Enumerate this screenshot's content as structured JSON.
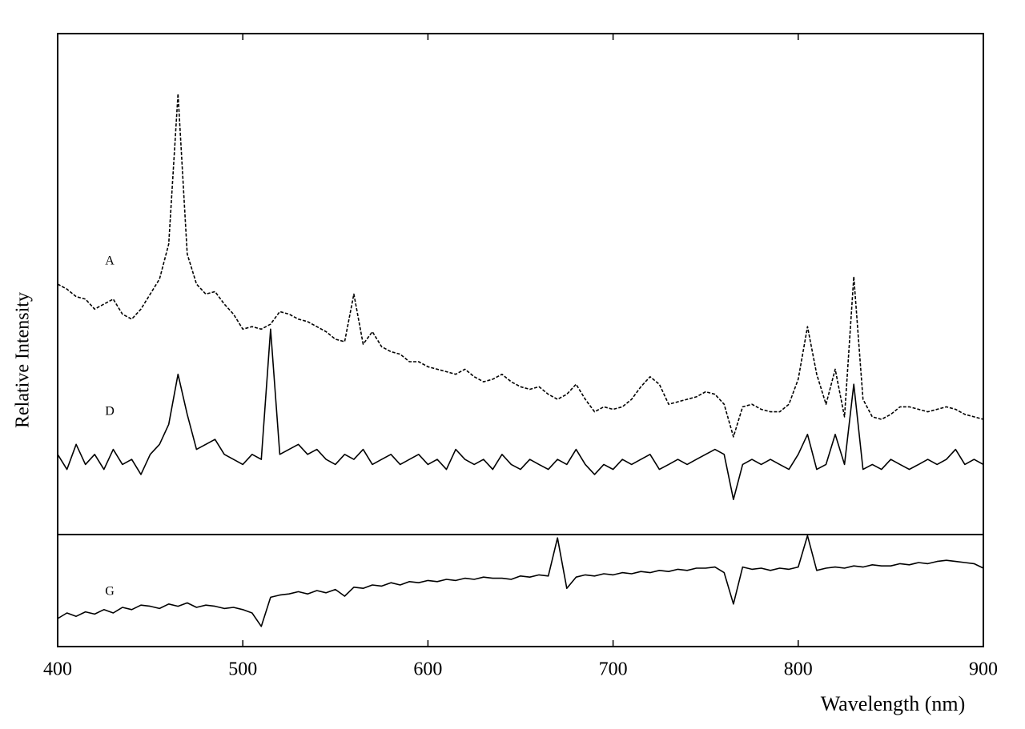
{
  "chart_data": [
    {
      "type": "line",
      "y_label": "Relative Intensity",
      "x": [
        400,
        405,
        410,
        415,
        420,
        425,
        430,
        435,
        440,
        445,
        450,
        455,
        460,
        465,
        470,
        475,
        480,
        485,
        490,
        495,
        500,
        505,
        510,
        515,
        520,
        525,
        530,
        535,
        540,
        545,
        550,
        555,
        560,
        565,
        570,
        575,
        580,
        585,
        590,
        595,
        600,
        605,
        610,
        615,
        620,
        625,
        630,
        635,
        640,
        645,
        650,
        655,
        660,
        665,
        670,
        675,
        680,
        685,
        690,
        695,
        700,
        705,
        710,
        715,
        720,
        725,
        730,
        735,
        740,
        745,
        750,
        755,
        760,
        765,
        770,
        775,
        780,
        785,
        790,
        795,
        800,
        805,
        810,
        815,
        820,
        825,
        830,
        835,
        840,
        845,
        850,
        855,
        860,
        865,
        870,
        875,
        880,
        885,
        890,
        895,
        900
      ],
      "xlim": [
        400,
        900
      ],
      "ylim": [
        0,
        100
      ],
      "series": [
        {
          "name": "A",
          "color": "#000000",
          "line_style": "dashed",
          "values": [
            50,
            49,
            47.5,
            47,
            45,
            46,
            47,
            44,
            43,
            45,
            48,
            51,
            58,
            88,
            56,
            50,
            48,
            48.5,
            46,
            44,
            41,
            41.5,
            41,
            42,
            44.5,
            44,
            43,
            42.5,
            41.5,
            40.5,
            39,
            38.5,
            48,
            38,
            40.5,
            37.5,
            36.5,
            36,
            34.5,
            34.5,
            33.5,
            33,
            32.5,
            32,
            33,
            31.5,
            30.5,
            31,
            32,
            30.5,
            29.5,
            29,
            29.5,
            28,
            27,
            28,
            30,
            27,
            24.5,
            25.5,
            25,
            25.5,
            27,
            29.5,
            31.5,
            30,
            26,
            26.5,
            27,
            27.5,
            28.5,
            28,
            26,
            19.5,
            25.5,
            26,
            25,
            24.5,
            24.5,
            26,
            31,
            41.5,
            32,
            26,
            33,
            23.5,
            51.5,
            27,
            23.5,
            23,
            24,
            25.5,
            25.5,
            25,
            24.5,
            25,
            25.5,
            25,
            24,
            23.5,
            23
          ]
        },
        {
          "name": "D",
          "color": "#000000",
          "line_style": "solid",
          "values": [
            16,
            13,
            18,
            14,
            16,
            13,
            17,
            14,
            15,
            12,
            16,
            18,
            22,
            32,
            24,
            17,
            18,
            19,
            16,
            15,
            14,
            16,
            15,
            41,
            16,
            17,
            18,
            16,
            17,
            15,
            14,
            16,
            15,
            17,
            14,
            15,
            16,
            14,
            15,
            16,
            14,
            15,
            13,
            17,
            15,
            14,
            15,
            13,
            16,
            14,
            13,
            15,
            14,
            13,
            15,
            14,
            17,
            14,
            12,
            14,
            13,
            15,
            14,
            15,
            16,
            13,
            14,
            15,
            14,
            15,
            16,
            17,
            16,
            7,
            14,
            15,
            14,
            15,
            14,
            13,
            16,
            20,
            13,
            14,
            20,
            14,
            30,
            13,
            14,
            13,
            15,
            14,
            13,
            14,
            15,
            14,
            15,
            17,
            14,
            15,
            14
          ]
        }
      ]
    },
    {
      "type": "line",
      "x_label": "Wavelength (nm)",
      "x": [
        400,
        405,
        410,
        415,
        420,
        425,
        430,
        435,
        440,
        445,
        450,
        455,
        460,
        465,
        470,
        475,
        480,
        485,
        490,
        495,
        500,
        505,
        510,
        515,
        520,
        525,
        530,
        535,
        540,
        545,
        550,
        555,
        560,
        565,
        570,
        575,
        580,
        585,
        590,
        595,
        600,
        605,
        610,
        615,
        620,
        625,
        630,
        635,
        640,
        645,
        650,
        655,
        660,
        665,
        670,
        675,
        680,
        685,
        690,
        695,
        700,
        705,
        710,
        715,
        720,
        725,
        730,
        735,
        740,
        745,
        750,
        755,
        760,
        765,
        770,
        775,
        780,
        785,
        790,
        795,
        800,
        805,
        810,
        815,
        820,
        825,
        830,
        835,
        840,
        845,
        850,
        855,
        860,
        865,
        870,
        875,
        880,
        885,
        890,
        895,
        900
      ],
      "xlim": [
        400,
        900
      ],
      "xticks": [
        400,
        500,
        600,
        700,
        800,
        900
      ],
      "ylim": [
        0,
        100
      ],
      "series": [
        {
          "name": "G",
          "color": "#000000",
          "line_style": "solid",
          "values": [
            25,
            30,
            27,
            31,
            29,
            33,
            30,
            35,
            33,
            37,
            36,
            34,
            38,
            36,
            39,
            35,
            37,
            36,
            34,
            35,
            33,
            30,
            18,
            44,
            46,
            47,
            49,
            47,
            50,
            48,
            51,
            45,
            53,
            52,
            55,
            54,
            57,
            55,
            58,
            57,
            59,
            58,
            60,
            59,
            61,
            60,
            62,
            61,
            61,
            60,
            63,
            62,
            64,
            63,
            97,
            52,
            62,
            64,
            63,
            65,
            64,
            66,
            65,
            67,
            66,
            68,
            67,
            69,
            68,
            70,
            70,
            71,
            66,
            38,
            71,
            69,
            70,
            68,
            70,
            69,
            71,
            99,
            68,
            70,
            71,
            70,
            72,
            71,
            73,
            72,
            72,
            74,
            73,
            75,
            74,
            76,
            77,
            76,
            75,
            74,
            70
          ]
        }
      ]
    }
  ]
}
